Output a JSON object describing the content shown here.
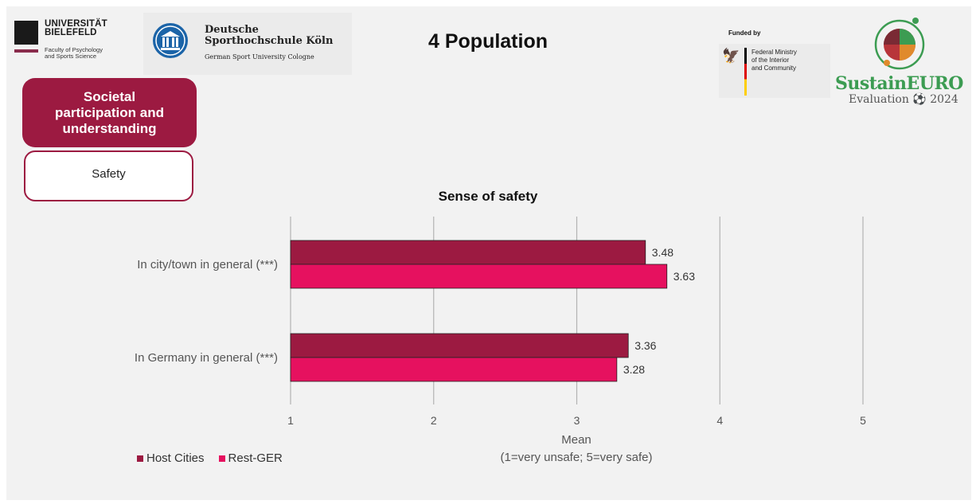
{
  "header": {
    "title": "4 Population",
    "uni_name_line1": "UNIVERSITÄT",
    "uni_name_line2": "BIELEFELD",
    "uni_faculty_line1": "Faculty of Psychology",
    "uni_faculty_line2": "and Sports Science",
    "dshs_line1": "Deutsche",
    "dshs_line2": "Sporthochschule Köln",
    "dshs_sub": "German Sport University Cologne",
    "funded_by": "Funded by",
    "ministry_line1": "Federal Ministry",
    "ministry_line2": "of the Interior",
    "ministry_line3": "and Community",
    "project_name": "SustainEURO",
    "project_sub": "Evaluation ⚽ 2024"
  },
  "category": {
    "main": "Societal participation and understanding",
    "sub": "Safety"
  },
  "colors": {
    "host": "#9c1a41",
    "rest": "#e6115f",
    "accent": "#9c1a41",
    "project_green": "#3c9c52"
  },
  "chart_data": {
    "type": "bar",
    "orientation": "horizontal",
    "title": "Sense of safety",
    "categories": [
      "In city/town in general (***)",
      "In Germany in general (***)"
    ],
    "series": [
      {
        "name": "Host Cities",
        "values": [
          3.48,
          3.36
        ]
      },
      {
        "name": "Rest-GER",
        "values": [
          3.63,
          3.28
        ]
      }
    ],
    "xlabel_line1": "Mean",
    "xlabel_line2": "(1=very unsafe; 5=very safe)",
    "xlim": [
      1,
      5
    ],
    "xticks": [
      1,
      2,
      3,
      4,
      5
    ],
    "grid": true,
    "legend_position": "bottom-left",
    "data_labels": [
      "3.48",
      "3.63",
      "3.36",
      "3.28"
    ]
  }
}
